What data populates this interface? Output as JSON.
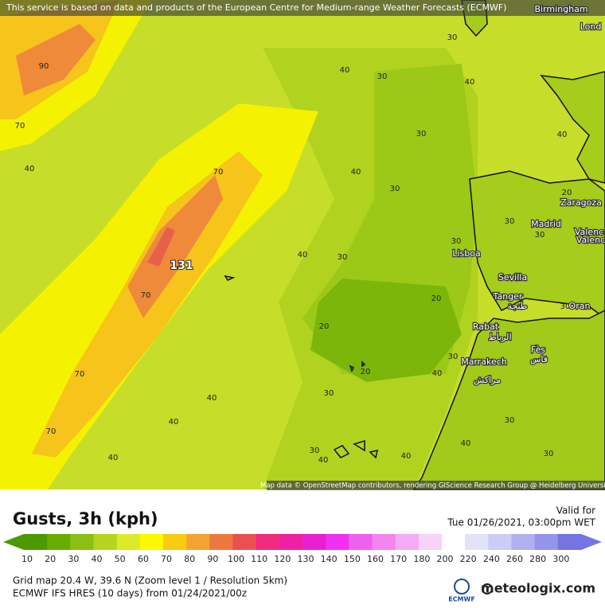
{
  "banner": "This service is based on data and products of the European Centre for Medium-range Weather Forecasts (ECMWF)",
  "map": {
    "cities": [
      "Birmingham",
      "Lond",
      "Zaragoza",
      "Madrid",
      "Valenc",
      "Valenc",
      "Lisboa",
      "Sevilla",
      "Tanger",
      "طنجة",
      "Oran",
      "Rabat",
      "الرباط",
      "Fès",
      "فاس",
      "Marrakech",
      "مراكش"
    ],
    "contour_labels": [
      90,
      70,
      40,
      70,
      40,
      30,
      40,
      30,
      30,
      40,
      30,
      40,
      30,
      70,
      20,
      20,
      20,
      30,
      40,
      30,
      40,
      40,
      70,
      40,
      30,
      40,
      40,
      40,
      20,
      30,
      30,
      30,
      30,
      30,
      30,
      40,
      70
    ],
    "marker": "131",
    "attribution": "Map data © OpenStreetMap contributors, rendering GIScience Research Group @ Heidelberg University"
  },
  "legend": {
    "title": "Gusts, 3h (kph)",
    "valid_label": "Valid for",
    "valid_time": "Tue 01/26/2021, 03:00pm WET",
    "scale": [
      {
        "value": 10,
        "color": "#4c9a00"
      },
      {
        "value": 20,
        "color": "#68ac00"
      },
      {
        "value": 30,
        "color": "#8cbe14"
      },
      {
        "value": 40,
        "color": "#b4d41e"
      },
      {
        "value": 50,
        "color": "#dcea28"
      },
      {
        "value": 60,
        "color": "#fcf800"
      },
      {
        "value": 70,
        "color": "#f8cc10"
      },
      {
        "value": 80,
        "color": "#f4a430"
      },
      {
        "value": 90,
        "color": "#ec7840"
      },
      {
        "value": 100,
        "color": "#ea5050"
      },
      {
        "value": 110,
        "color": "#f02a7c"
      },
      {
        "value": 120,
        "color": "#f020a4"
      },
      {
        "value": 130,
        "color": "#e820d0"
      },
      {
        "value": 140,
        "color": "#f030f0"
      },
      {
        "value": 150,
        "color": "#f060f0"
      },
      {
        "value": 160,
        "color": "#f484f0"
      },
      {
        "value": 170,
        "color": "#f4aaf4"
      },
      {
        "value": 180,
        "color": "#f8d2f8"
      },
      {
        "value": 200,
        "color": "#ffffff"
      },
      {
        "value": 220,
        "color": "#e2e2f8"
      },
      {
        "value": 240,
        "color": "#ccccf6"
      },
      {
        "value": 260,
        "color": "#b0b0f0"
      },
      {
        "value": 280,
        "color": "#9494ea"
      },
      {
        "value": 300,
        "color": "#7474e2"
      }
    ]
  },
  "footer": {
    "grid_info": "Grid map 20.4 W, 39.6 N (Zoom level 1 / Resolution 5km)",
    "model_info": "ECMWF IFS HRES (10 days) from 01/24/2021/00z",
    "ecmwf_logo": "ECMWF",
    "brand": "meteologix.com"
  }
}
